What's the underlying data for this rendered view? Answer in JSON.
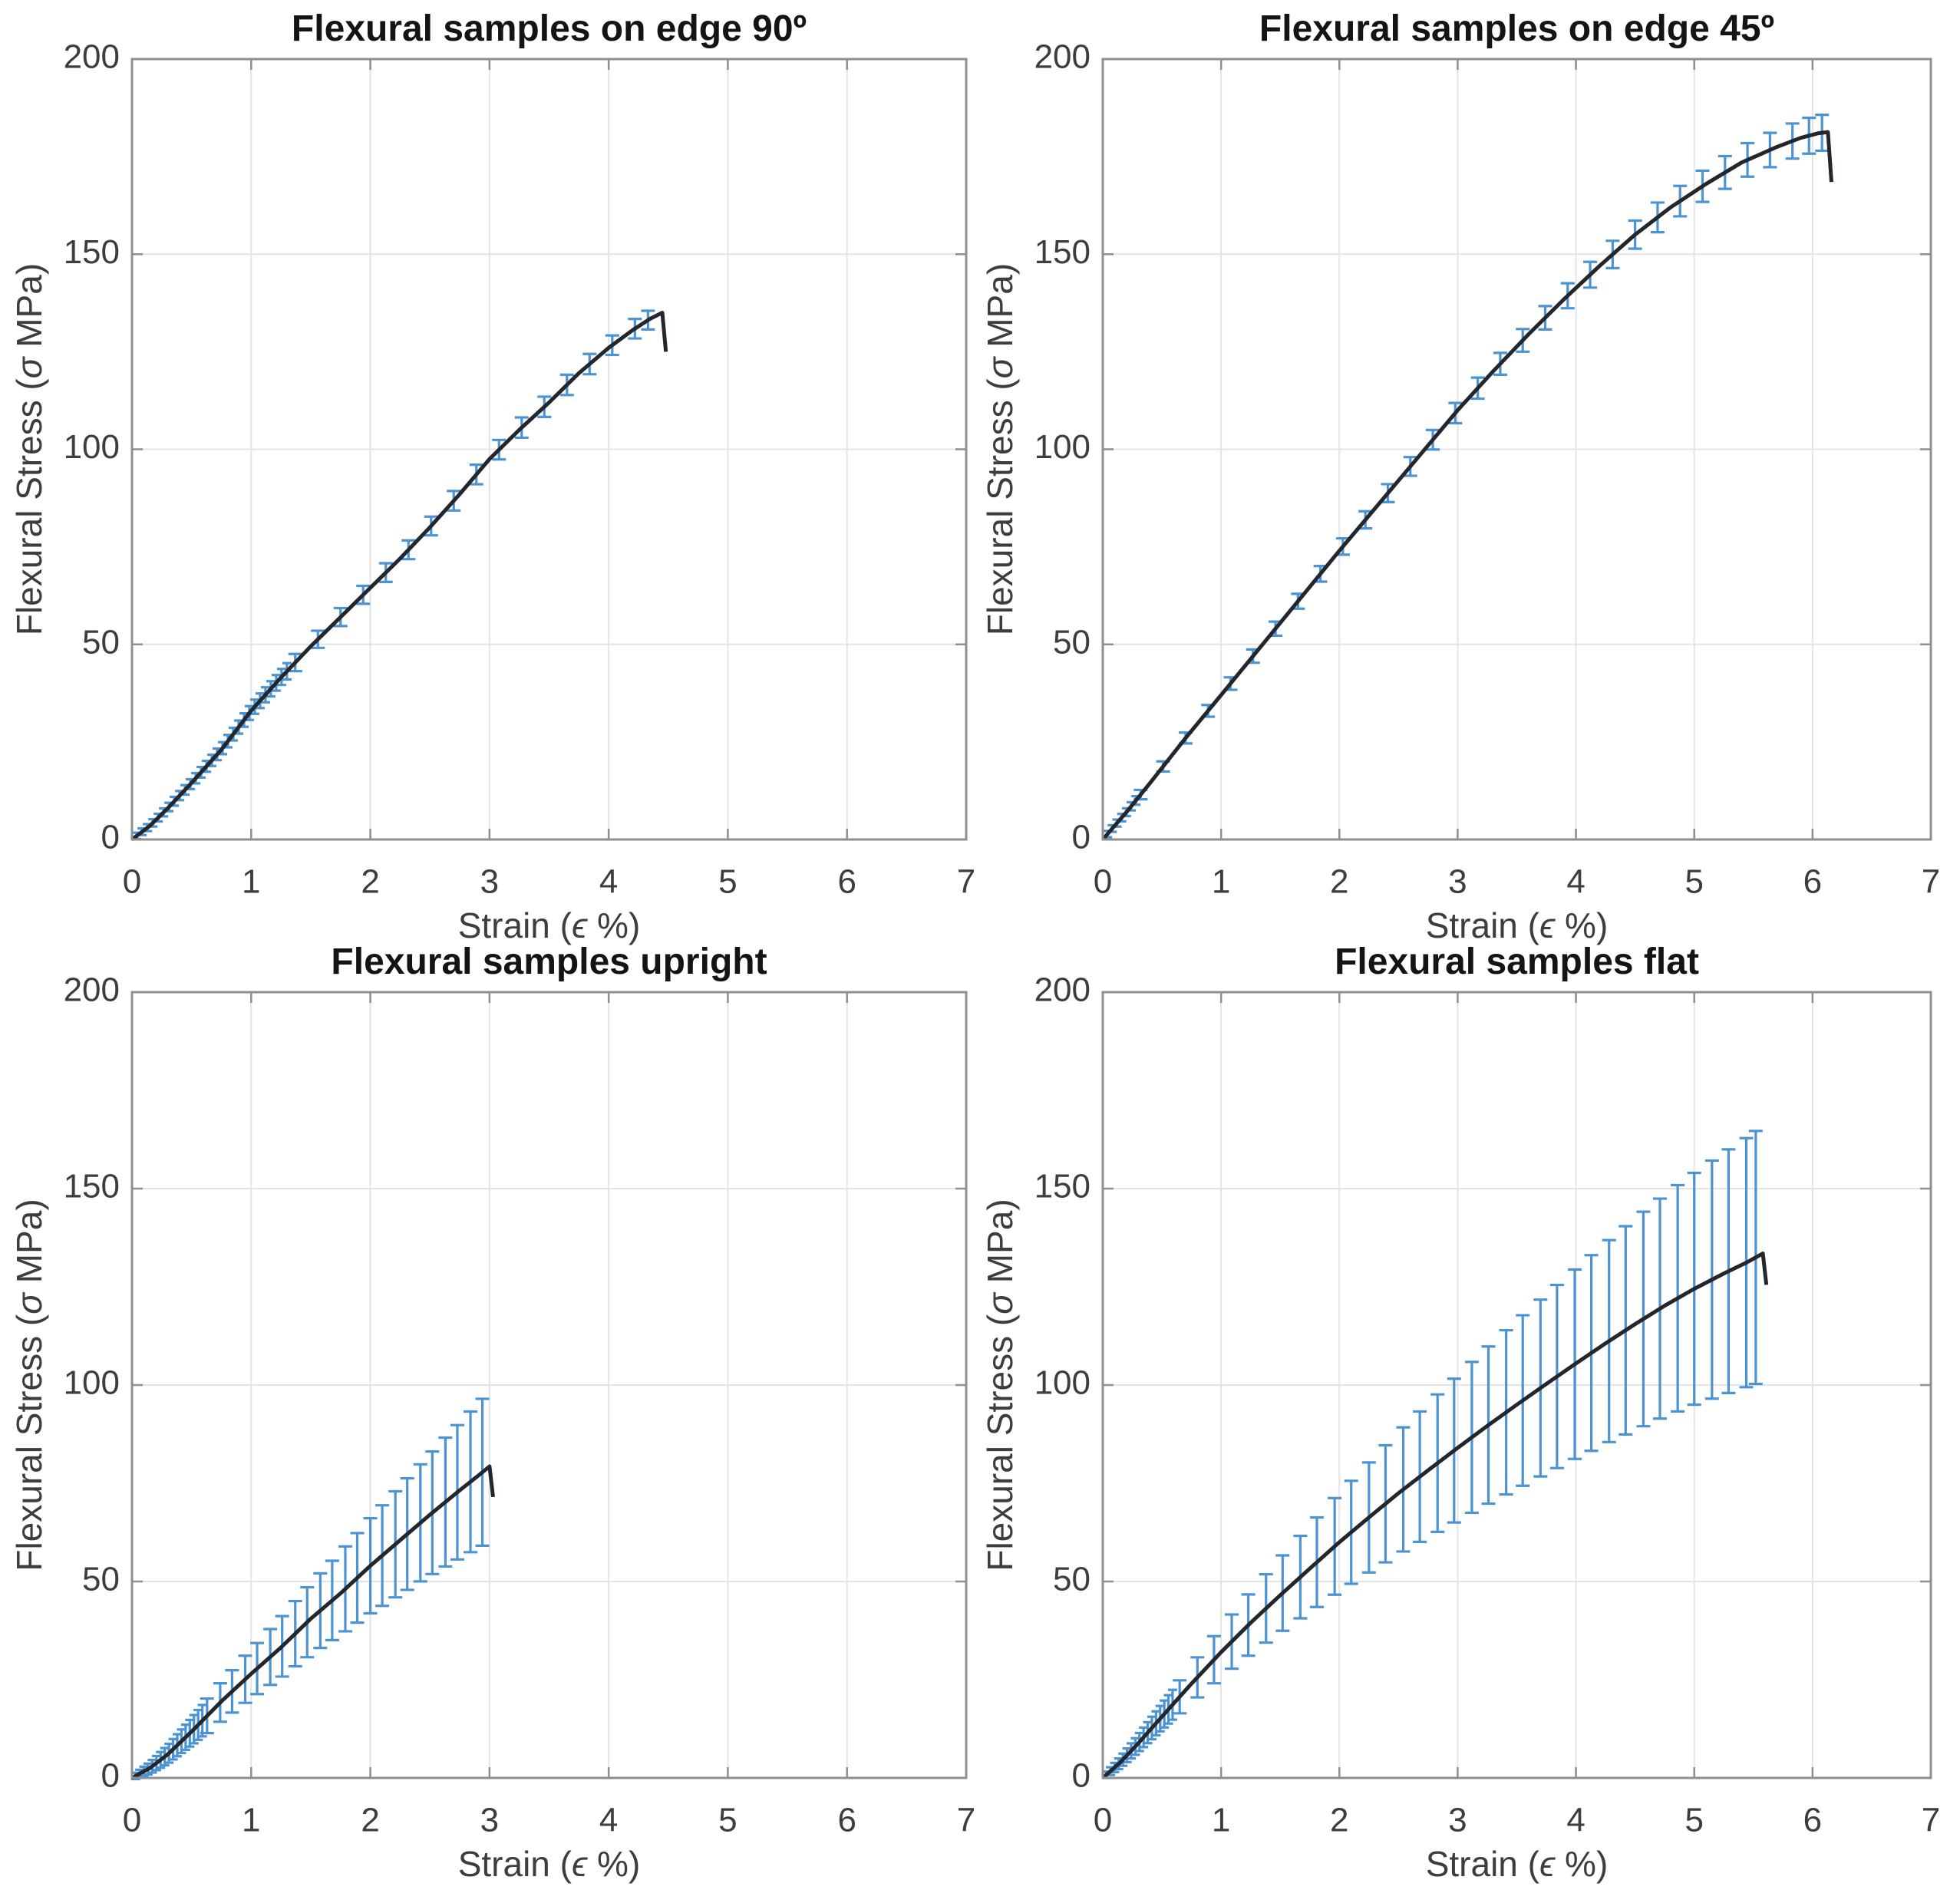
{
  "figure": {
    "background": "#ffffff",
    "kind": "matlab-style 2x2 subplot figure of flexural stress-strain curves with error bars"
  },
  "style": {
    "curve_color": "#23272d",
    "error_color": "#4b93d2",
    "frame_color": "#8f8f8f",
    "grid_color": "#e4e4e4",
    "tick_label_color": "#3d3d3d",
    "axis_label_color": "#3d3d3d",
    "title_color": "#141414"
  },
  "chart_data": [
    {
      "id": "edge90",
      "type": "line",
      "title": "Flexural samples on edge 90º",
      "xlabel": "Strain (ϵ %)",
      "ylabel": "Flexural Stress (σ MPa)",
      "xlim": [
        0,
        7
      ],
      "ylim": [
        0,
        200
      ],
      "xticks": [
        0,
        1,
        2,
        3,
        4,
        5,
        6,
        7
      ],
      "yticks": [
        0,
        50,
        100,
        150,
        200
      ],
      "grid": true,
      "legend": null,
      "curve": [
        [
          0,
          0
        ],
        [
          0.15,
          3.5
        ],
        [
          0.3,
          8
        ],
        [
          0.5,
          14.5
        ],
        [
          0.75,
          23
        ],
        [
          1,
          33
        ],
        [
          1.25,
          41.5
        ],
        [
          1.5,
          49.5
        ],
        [
          1.75,
          57
        ],
        [
          2,
          64.5
        ],
        [
          2.25,
          72
        ],
        [
          2.5,
          80
        ],
        [
          2.75,
          88.5
        ],
        [
          3,
          97.5
        ],
        [
          3.25,
          105
        ],
        [
          3.5,
          112
        ],
        [
          3.75,
          119.5
        ],
        [
          4,
          126
        ],
        [
          4.2,
          130.5
        ],
        [
          4.35,
          133.5
        ],
        [
          4.45,
          135
        ],
        [
          4.48,
          125
        ]
      ],
      "peak_stress": 135,
      "failure_strain": 4.45,
      "error_bars": [
        [
          1.37,
          2.2
        ],
        [
          1.56,
          2.2
        ],
        [
          1.75,
          2.3
        ],
        [
          1.94,
          2.3
        ],
        [
          2.13,
          2.4
        ],
        [
          2.32,
          2.4
        ],
        [
          2.51,
          2.4
        ],
        [
          2.7,
          2.5
        ],
        [
          2.89,
          2.5
        ],
        [
          3.08,
          2.5
        ],
        [
          3.27,
          2.6
        ],
        [
          3.46,
          2.6
        ],
        [
          3.65,
          2.6
        ],
        [
          3.84,
          2.6
        ],
        [
          4.03,
          2.5
        ],
        [
          4.22,
          2.5
        ],
        [
          4.33,
          2.4
        ]
      ],
      "dense_error_band": {
        "from": 0.04,
        "to": 1.28,
        "step": 0.045,
        "half_from": 0.8,
        "half_to": 2.1
      }
    },
    {
      "id": "edge45",
      "type": "line",
      "title": "Flexural samples on edge 45º",
      "xlabel": "Strain (ϵ %)",
      "ylabel": "Flexural Stress (σ MPa)",
      "xlim": [
        0,
        7
      ],
      "ylim": [
        0,
        200
      ],
      "xticks": [
        0,
        1,
        2,
        3,
        4,
        5,
        6,
        7
      ],
      "yticks": [
        0,
        50,
        100,
        150,
        200
      ],
      "grid": true,
      "legend": null,
      "curve": [
        [
          0,
          0
        ],
        [
          0.2,
          7
        ],
        [
          0.4,
          14.5
        ],
        [
          0.7,
          26
        ],
        [
          1,
          37
        ],
        [
          1.5,
          55.5
        ],
        [
          2,
          74
        ],
        [
          2.5,
          92
        ],
        [
          3,
          110
        ],
        [
          3.3,
          120
        ],
        [
          3.6,
          129.5
        ],
        [
          3.9,
          138.5
        ],
        [
          4.2,
          147
        ],
        [
          4.5,
          155
        ],
        [
          4.8,
          162
        ],
        [
          5.1,
          168
        ],
        [
          5.4,
          173.5
        ],
        [
          5.7,
          177.5
        ],
        [
          5.9,
          179.8
        ],
        [
          6.05,
          181
        ],
        [
          6.13,
          181.3
        ],
        [
          6.16,
          168.5
        ]
      ],
      "peak_stress": 181.3,
      "failure_strain": 6.13,
      "error_bars": [
        [
          0.32,
          1.2
        ],
        [
          0.51,
          1.3
        ],
        [
          0.7,
          1.4
        ],
        [
          0.89,
          1.5
        ],
        [
          1.08,
          1.6
        ],
        [
          1.27,
          1.7
        ],
        [
          1.46,
          1.8
        ],
        [
          1.65,
          1.9
        ],
        [
          1.84,
          2
        ],
        [
          2.03,
          2.1
        ],
        [
          2.22,
          2.2
        ],
        [
          2.41,
          2.3
        ],
        [
          2.6,
          2.4
        ],
        [
          2.79,
          2.5
        ],
        [
          2.98,
          2.6
        ],
        [
          3.17,
          2.7
        ],
        [
          3.36,
          2.8
        ],
        [
          3.55,
          2.9
        ],
        [
          3.74,
          3
        ],
        [
          3.93,
          3.2
        ],
        [
          4.12,
          3.3
        ],
        [
          4.31,
          3.5
        ],
        [
          4.5,
          3.6
        ],
        [
          4.69,
          3.8
        ],
        [
          4.88,
          3.9
        ],
        [
          5.07,
          4
        ],
        [
          5.26,
          4.2
        ],
        [
          5.45,
          4.3
        ],
        [
          5.64,
          4.4
        ],
        [
          5.83,
          4.5
        ],
        [
          5.97,
          4.6
        ],
        [
          6.08,
          4.6
        ]
      ],
      "dense_error_band": {
        "from": 0.04,
        "to": 0.28,
        "step": 0.04,
        "half_from": 0.8,
        "half_to": 1.1
      }
    },
    {
      "id": "upright",
      "type": "line",
      "title": "Flexural samples upright",
      "xlabel": "Strain (ϵ %)",
      "ylabel": "Flexural Stress (σ MPa)",
      "xlim": [
        0,
        7
      ],
      "ylim": [
        0,
        200
      ],
      "xticks": [
        0,
        1,
        2,
        3,
        4,
        5,
        6,
        7
      ],
      "yticks": [
        0,
        50,
        100,
        150,
        200
      ],
      "grid": true,
      "legend": null,
      "curve": [
        [
          0,
          0
        ],
        [
          0.15,
          2.5
        ],
        [
          0.3,
          6
        ],
        [
          0.5,
          11.8
        ],
        [
          0.75,
          19.5
        ],
        [
          1,
          26.5
        ],
        [
          1.25,
          33.2
        ],
        [
          1.5,
          40.5
        ],
        [
          1.75,
          47
        ],
        [
          2,
          54
        ],
        [
          2.25,
          60.5
        ],
        [
          2.5,
          67
        ],
        [
          2.75,
          73.2
        ],
        [
          2.9,
          76.8
        ],
        [
          3,
          79.3
        ],
        [
          3.03,
          71.5
        ]
      ],
      "peak_stress": 79.3,
      "failure_strain": 3.0,
      "error_bars": [
        [
          0.63,
          4.4
        ],
        [
          0.74,
          4.9
        ],
        [
          0.84,
          5.4
        ],
        [
          0.95,
          6
        ],
        [
          1.05,
          6.5
        ],
        [
          1.16,
          7.1
        ],
        [
          1.26,
          7.7
        ],
        [
          1.37,
          8.3
        ],
        [
          1.47,
          8.9
        ],
        [
          1.58,
          9.5
        ],
        [
          1.68,
          10.1
        ],
        [
          1.79,
          10.8
        ],
        [
          1.89,
          11.4
        ],
        [
          2,
          12.1
        ],
        [
          2.1,
          12.8
        ],
        [
          2.21,
          13.5
        ],
        [
          2.31,
          14.2
        ],
        [
          2.42,
          14.9
        ],
        [
          2.52,
          15.6
        ],
        [
          2.63,
          16.4
        ],
        [
          2.73,
          17.1
        ],
        [
          2.84,
          17.9
        ],
        [
          2.94,
          18.7
        ]
      ],
      "dense_error_band": {
        "from": 0.03,
        "to": 0.58,
        "step": 0.035,
        "half_from": 0.8,
        "half_to": 4.0
      }
    },
    {
      "id": "flat",
      "type": "line",
      "title": "Flexural samples flat",
      "xlabel": "Strain (ϵ %)",
      "ylabel": "Flexural Stress (σ MPa)",
      "xlim": [
        0,
        7
      ],
      "ylim": [
        0,
        200
      ],
      "xticks": [
        0,
        1,
        2,
        3,
        4,
        5,
        6,
        7
      ],
      "yticks": [
        0,
        50,
        100,
        150,
        200
      ],
      "grid": true,
      "legend": null,
      "curve": [
        [
          0,
          0
        ],
        [
          0.15,
          4
        ],
        [
          0.3,
          8.8
        ],
        [
          0.5,
          15.6
        ],
        [
          0.75,
          24
        ],
        [
          1,
          32
        ],
        [
          1.25,
          39.5
        ],
        [
          1.5,
          46.5
        ],
        [
          1.75,
          53.3
        ],
        [
          2,
          60
        ],
        [
          2.25,
          66.3
        ],
        [
          2.5,
          72.5
        ],
        [
          2.75,
          78.3
        ],
        [
          3,
          84
        ],
        [
          3.25,
          89.6
        ],
        [
          3.5,
          95
        ],
        [
          3.75,
          100.3
        ],
        [
          4,
          105.5
        ],
        [
          4.25,
          110.6
        ],
        [
          4.5,
          115.5
        ],
        [
          4.75,
          120.2
        ],
        [
          5,
          124.5
        ],
        [
          5.25,
          128.4
        ],
        [
          5.45,
          131.3
        ],
        [
          5.58,
          133.5
        ],
        [
          5.61,
          125.5
        ]
      ],
      "peak_stress": 133.5,
      "failure_strain": 5.58,
      "error_bars": [
        [
          0.65,
          4.2
        ],
        [
          0.8,
          5.1
        ],
        [
          0.94,
          6
        ],
        [
          1.09,
          6.9
        ],
        [
          1.23,
          7.8
        ],
        [
          1.38,
          8.7
        ],
        [
          1.52,
          9.6
        ],
        [
          1.67,
          10.5
        ],
        [
          1.81,
          11.4
        ],
        [
          1.96,
          12.3
        ],
        [
          2.1,
          13.1
        ],
        [
          2.25,
          14
        ],
        [
          2.39,
          14.9
        ],
        [
          2.54,
          15.8
        ],
        [
          2.68,
          16.6
        ],
        [
          2.83,
          17.5
        ],
        [
          2.97,
          18.3
        ],
        [
          3.12,
          19.2
        ],
        [
          3.26,
          20
        ],
        [
          3.41,
          20.9
        ],
        [
          3.55,
          21.7
        ],
        [
          3.7,
          22.5
        ],
        [
          3.84,
          23.3
        ],
        [
          3.99,
          24.1
        ],
        [
          4.13,
          24.9
        ],
        [
          4.28,
          25.7
        ],
        [
          4.42,
          26.5
        ],
        [
          4.57,
          27.3
        ],
        [
          4.71,
          28
        ],
        [
          4.86,
          28.8
        ],
        [
          5,
          29.5
        ],
        [
          5.15,
          30.3
        ],
        [
          5.29,
          31
        ],
        [
          5.44,
          31.7
        ],
        [
          5.52,
          32.2
        ]
      ],
      "dense_error_band": {
        "from": 0.03,
        "to": 0.58,
        "step": 0.035,
        "half_from": 0.8,
        "half_to": 3.8
      }
    }
  ],
  "layout_hints": {
    "grid": "2 rows x 2 columns",
    "subplot_order": [
      "edge90",
      "edge45",
      "upright",
      "flat"
    ],
    "grid_on": true,
    "box_on": true,
    "tick_direction": "in"
  }
}
